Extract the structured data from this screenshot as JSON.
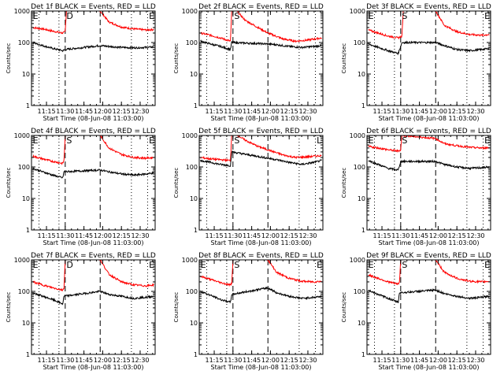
{
  "chart_data": [
    {
      "type": "line",
      "title": "Det 1f BLACK = Events, RED = LLD",
      "xlabel": "Start Time (08-Jun-08 11:03:00)",
      "ylabel": "Counts/sec",
      "yscale": "log",
      "ylim": [
        1,
        1000
      ],
      "xlim": [
        "11:03",
        "12:42"
      ],
      "xticks": [
        "11:15",
        "11:30",
        "11:45",
        "12:00",
        "12:15",
        "12:30"
      ],
      "yticks": [
        "1",
        "10",
        "100",
        "1000"
      ],
      "dotted_lines": [
        "11:09",
        "11:25",
        "12:23",
        "12:36"
      ],
      "dashed_lines": [
        "11:30",
        "11:58"
      ],
      "markers": [
        {
          "label": "E",
          "at": "11:04"
        },
        {
          "label": "D",
          "at": "11:31"
        },
        {
          "label": "E",
          "at": "12:37"
        }
      ],
      "series": [
        {
          "name": "LLD",
          "color": "#ff0000",
          "x": [
            "11:04",
            "11:12",
            "11:20",
            "11:28",
            "11:30",
            "11:31",
            "11:58",
            "12:05",
            "12:15",
            "12:25",
            "12:35",
            "12:41"
          ],
          "y": [
            300,
            270,
            230,
            200,
            220,
            1000,
            1000,
            450,
            310,
            270,
            250,
            260
          ]
        },
        {
          "name": "Events",
          "color": "#000000",
          "x": [
            "11:04",
            "11:12",
            "11:20",
            "11:28",
            "11:30",
            "11:58",
            "12:05",
            "12:15",
            "12:25",
            "12:35",
            "12:41"
          ],
          "y": [
            100,
            80,
            65,
            55,
            60,
            80,
            75,
            70,
            68,
            70,
            72
          ]
        }
      ]
    },
    {
      "type": "line",
      "title": "Det 2f BLACK = Events, RED = LLD",
      "xlabel": "Start Time (08-Jun-08 11:03:00)",
      "ylabel": "Counts/sec",
      "yscale": "log",
      "ylim": [
        1,
        1000
      ],
      "xlim": [
        "11:03",
        "12:42"
      ],
      "xticks": [
        "11:15",
        "11:30",
        "11:45",
        "12:00",
        "12:15",
        "12:30"
      ],
      "yticks": [
        "1",
        "10",
        "100",
        "1000"
      ],
      "dotted_lines": [
        "11:09",
        "11:25",
        "12:23",
        "12:36"
      ],
      "dashed_lines": [
        "11:30",
        "11:58"
      ],
      "markers": [
        {
          "label": "S",
          "at": "11:31"
        }
      ],
      "series": [
        {
          "name": "LLD",
          "color": "#ff0000",
          "x": [
            "11:04",
            "11:12",
            "11:20",
            "11:28",
            "11:29",
            "11:33",
            "11:40",
            "11:50",
            "11:58",
            "12:10",
            "12:20",
            "12:30",
            "12:41"
          ],
          "y": [
            200,
            170,
            140,
            110,
            1000,
            1000,
            500,
            300,
            200,
            130,
            110,
            120,
            140
          ]
        },
        {
          "name": "Events",
          "color": "#000000",
          "x": [
            "11:04",
            "11:12",
            "11:20",
            "11:28",
            "11:29",
            "11:58",
            "12:05",
            "12:15",
            "12:25",
            "12:35",
            "12:41"
          ],
          "y": [
            110,
            90,
            75,
            60,
            100,
            90,
            85,
            75,
            70,
            75,
            80
          ]
        }
      ]
    },
    {
      "type": "line",
      "title": "Det 3f BLACK = Events, RED = LLD",
      "xlabel": "Start Time (08-Jun-08 11:03:00)",
      "ylabel": "Counts/sec",
      "yscale": "log",
      "ylim": [
        1,
        1000
      ],
      "xlim": [
        "11:03",
        "12:42"
      ],
      "xticks": [
        "11:15",
        "11:30",
        "11:45",
        "12:00",
        "12:15",
        "12:30"
      ],
      "yticks": [
        "1",
        "10",
        "100",
        "1000"
      ],
      "dotted_lines": [
        "11:09",
        "11:25",
        "12:23",
        "12:36"
      ],
      "dashed_lines": [
        "11:30",
        "11:58"
      ],
      "markers": [
        {
          "label": "E",
          "at": "11:04"
        },
        {
          "label": "S",
          "at": "11:31"
        },
        {
          "label": "E",
          "at": "12:37"
        }
      ],
      "series": [
        {
          "name": "LLD",
          "color": "#ff0000",
          "x": [
            "11:04",
            "11:12",
            "11:20",
            "11:28",
            "11:31",
            "11:32",
            "11:58",
            "12:05",
            "12:15",
            "12:25",
            "12:35",
            "12:41"
          ],
          "y": [
            250,
            200,
            160,
            140,
            160,
            1000,
            1000,
            350,
            220,
            180,
            170,
            180
          ]
        },
        {
          "name": "Events",
          "color": "#000000",
          "x": [
            "11:04",
            "11:12",
            "11:20",
            "11:28",
            "11:31",
            "11:58",
            "12:05",
            "12:15",
            "12:25",
            "12:35",
            "12:41"
          ],
          "y": [
            90,
            70,
            55,
            45,
            100,
            100,
            80,
            60,
            55,
            60,
            65
          ]
        }
      ]
    },
    {
      "type": "line",
      "title": "Det 4f BLACK = Events, RED = LLD",
      "xlabel": "Start Time (08-Jun-08 11:03:00)",
      "ylabel": "Counts/sec",
      "yscale": "log",
      "ylim": [
        1,
        1000
      ],
      "xlim": [
        "11:03",
        "12:42"
      ],
      "xticks": [
        "11:15",
        "11:30",
        "11:45",
        "12:00",
        "12:15",
        "12:30"
      ],
      "yticks": [
        "1",
        "10",
        "100",
        "1000"
      ],
      "dotted_lines": [
        "11:09",
        "11:25",
        "12:23",
        "12:36"
      ],
      "dashed_lines": [
        "11:30",
        "11:58"
      ],
      "markers": [
        {
          "label": "E",
          "at": "11:04"
        },
        {
          "label": "S",
          "at": "11:31"
        },
        {
          "label": "E",
          "at": "12:37"
        }
      ],
      "series": [
        {
          "name": "LLD",
          "color": "#ff0000",
          "x": [
            "11:04",
            "11:12",
            "11:20",
            "11:28",
            "11:29",
            "11:30",
            "11:58",
            "12:05",
            "12:15",
            "12:25",
            "12:35",
            "12:41"
          ],
          "y": [
            220,
            180,
            150,
            130,
            160,
            1000,
            1000,
            400,
            250,
            200,
            190,
            200
          ]
        },
        {
          "name": "Events",
          "color": "#000000",
          "x": [
            "11:04",
            "11:12",
            "11:20",
            "11:28",
            "11:29",
            "11:58",
            "12:05",
            "12:15",
            "12:25",
            "12:35",
            "12:41"
          ],
          "y": [
            90,
            70,
            55,
            45,
            70,
            80,
            70,
            60,
            55,
            60,
            65
          ]
        }
      ]
    },
    {
      "type": "line",
      "title": "Det 5f BLACK = Events, RED = LLD",
      "xlabel": "Start Time (08-Jun-08 11:03:00)",
      "ylabel": "Counts/sec",
      "yscale": "log",
      "ylim": [
        1,
        1000
      ],
      "xlim": [
        "11:03",
        "12:42"
      ],
      "xticks": [
        "11:15",
        "11:30",
        "11:45",
        "12:00",
        "12:15",
        "12:30"
      ],
      "yticks": [
        "1",
        "10",
        "100",
        "1000"
      ],
      "dotted_lines": [
        "11:09",
        "11:25",
        "12:23",
        "12:36"
      ],
      "dashed_lines": [
        "11:30",
        "11:58"
      ],
      "markers": [
        {
          "label": "S",
          "at": "11:31"
        },
        {
          "label": "L",
          "at": "12:37"
        }
      ],
      "series": [
        {
          "name": "LLD",
          "color": "#ff0000",
          "x": [
            "11:04",
            "11:12",
            "11:20",
            "11:28",
            "11:29",
            "11:34",
            "11:40",
            "11:50",
            "11:58",
            "12:10",
            "12:20",
            "12:30",
            "12:41"
          ],
          "y": [
            200,
            180,
            170,
            160,
            1000,
            1000,
            700,
            450,
            350,
            240,
            200,
            210,
            230
          ]
        },
        {
          "name": "Events",
          "color": "#000000",
          "x": [
            "11:04",
            "11:12",
            "11:20",
            "11:28",
            "11:29",
            "11:58",
            "12:05",
            "12:15",
            "12:25",
            "12:35",
            "12:41"
          ],
          "y": [
            160,
            140,
            120,
            110,
            300,
            190,
            170,
            140,
            120,
            140,
            160
          ]
        }
      ]
    },
    {
      "type": "line",
      "title": "Det 6f BLACK = Events, RED = LLD",
      "xlabel": "Start Time (08-Jun-08 11:03:00)",
      "ylabel": "Counts/sec",
      "yscale": "log",
      "ylim": [
        1,
        1000
      ],
      "xlim": [
        "11:03",
        "12:42"
      ],
      "xticks": [
        "11:15",
        "11:30",
        "11:45",
        "12:00",
        "12:15",
        "12:30"
      ],
      "yticks": [
        "1",
        "10",
        "100",
        "1000"
      ],
      "dotted_lines": [
        "11:09",
        "11:25",
        "12:23",
        "12:36"
      ],
      "dashed_lines": [
        "11:30",
        "11:58"
      ],
      "markers": [
        {
          "label": "E",
          "at": "11:04"
        },
        {
          "label": "S",
          "at": "11:31"
        },
        {
          "label": "E",
          "at": "12:37"
        }
      ],
      "series": [
        {
          "name": "LLD",
          "color": "#ff0000",
          "x": [
            "11:04",
            "11:12",
            "11:20",
            "11:28",
            "11:30",
            "11:31",
            "11:58",
            "12:05",
            "12:15",
            "12:25",
            "12:35",
            "12:41"
          ],
          "y": [
            450,
            400,
            350,
            320,
            350,
            1000,
            800,
            550,
            470,
            420,
            400,
            410
          ]
        },
        {
          "name": "Events",
          "color": "#000000",
          "x": [
            "11:04",
            "11:12",
            "11:20",
            "11:28",
            "11:30",
            "11:58",
            "12:05",
            "12:15",
            "12:25",
            "12:35",
            "12:41"
          ],
          "y": [
            160,
            120,
            90,
            80,
            150,
            150,
            120,
            100,
            90,
            95,
            100
          ]
        }
      ]
    },
    {
      "type": "line",
      "title": "Det 7f BLACK = Events, RED = LLD",
      "xlabel": "Start Time (08-Jun-08 11:03:00)",
      "ylabel": "Counts/sec",
      "yscale": "log",
      "ylim": [
        1,
        1000
      ],
      "xlim": [
        "11:03",
        "12:42"
      ],
      "xticks": [
        "11:15",
        "11:30",
        "11:45",
        "12:00",
        "12:15",
        "12:30"
      ],
      "yticks": [
        "1",
        "10",
        "100",
        "1000"
      ],
      "dotted_lines": [
        "11:09",
        "11:25",
        "12:23",
        "12:36"
      ],
      "dashed_lines": [
        "11:30",
        "11:58"
      ],
      "markers": [
        {
          "label": "E",
          "at": "11:04"
        },
        {
          "label": "D",
          "at": "11:31"
        },
        {
          "label": "E",
          "at": "12:37"
        }
      ],
      "series": [
        {
          "name": "LLD",
          "color": "#ff0000",
          "x": [
            "11:04",
            "11:12",
            "11:20",
            "11:28",
            "11:29",
            "11:30",
            "11:58",
            "12:05",
            "12:15",
            "12:25",
            "12:35",
            "12:41"
          ],
          "y": [
            200,
            160,
            130,
            110,
            130,
            1000,
            1000,
            350,
            200,
            160,
            150,
            160
          ]
        },
        {
          "name": "Events",
          "color": "#000000",
          "x": [
            "11:04",
            "11:12",
            "11:20",
            "11:28",
            "11:29",
            "11:58",
            "12:05",
            "12:15",
            "12:25",
            "12:35",
            "12:41"
          ],
          "y": [
            90,
            70,
            55,
            40,
            70,
            100,
            80,
            70,
            60,
            65,
            70
          ]
        }
      ]
    },
    {
      "type": "line",
      "title": "Det 8f BLACK = Events, RED = LLD",
      "xlabel": "Start Time (08-Jun-08 11:03:00)",
      "ylabel": "Counts/sec",
      "yscale": "log",
      "ylim": [
        1,
        1000
      ],
      "xlim": [
        "11:03",
        "12:42"
      ],
      "xticks": [
        "11:15",
        "11:30",
        "11:45",
        "12:00",
        "12:15",
        "12:30"
      ],
      "yticks": [
        "1",
        "10",
        "100",
        "1000"
      ],
      "dotted_lines": [
        "11:09",
        "11:25",
        "12:23",
        "12:36"
      ],
      "dashed_lines": [
        "11:30",
        "11:58"
      ],
      "markers": [
        {
          "label": "E",
          "at": "11:04"
        },
        {
          "label": "S",
          "at": "11:31"
        },
        {
          "label": "E",
          "at": "12:37"
        }
      ],
      "series": [
        {
          "name": "LLD",
          "color": "#ff0000",
          "x": [
            "11:04",
            "11:12",
            "11:20",
            "11:28",
            "11:29",
            "11:30",
            "11:58",
            "12:05",
            "12:15",
            "12:25",
            "12:35",
            "12:41"
          ],
          "y": [
            300,
            240,
            190,
            160,
            180,
            1000,
            1000,
            400,
            260,
            210,
            200,
            210
          ]
        },
        {
          "name": "Events",
          "color": "#000000",
          "x": [
            "11:04",
            "11:12",
            "11:20",
            "11:28",
            "11:29",
            "11:58",
            "12:05",
            "12:15",
            "12:25",
            "12:35",
            "12:41"
          ],
          "y": [
            100,
            75,
            55,
            45,
            80,
            130,
            90,
            70,
            60,
            65,
            70
          ]
        }
      ]
    },
    {
      "type": "line",
      "title": "Det 9f BLACK = Events, RED = LLD",
      "xlabel": "Start Time (08-Jun-08 11:03:00)",
      "ylabel": "Counts/sec",
      "yscale": "log",
      "ylim": [
        1,
        1000
      ],
      "xlim": [
        "11:03",
        "12:42"
      ],
      "xticks": [
        "11:15",
        "11:30",
        "11:45",
        "12:00",
        "12:15",
        "12:30"
      ],
      "yticks": [
        "1",
        "10",
        "100",
        "1000"
      ],
      "dotted_lines": [
        "11:09",
        "11:25",
        "12:23",
        "12:36"
      ],
      "dashed_lines": [
        "11:30",
        "11:58"
      ],
      "markers": [
        {
          "label": "E",
          "at": "11:04"
        },
        {
          "label": "S",
          "at": "11:31"
        },
        {
          "label": "E",
          "at": "12:37"
        }
      ],
      "series": [
        {
          "name": "LLD",
          "color": "#ff0000",
          "x": [
            "11:04",
            "11:12",
            "11:20",
            "11:28",
            "11:29",
            "11:30",
            "11:58",
            "12:05",
            "12:15",
            "12:25",
            "12:35",
            "12:41"
          ],
          "y": [
            330,
            260,
            200,
            170,
            200,
            1000,
            1000,
            400,
            260,
            210,
            200,
            210
          ]
        },
        {
          "name": "Events",
          "color": "#000000",
          "x": [
            "11:04",
            "11:12",
            "11:20",
            "11:28",
            "11:29",
            "11:58",
            "12:05",
            "12:15",
            "12:25",
            "12:35",
            "12:41"
          ],
          "y": [
            110,
            80,
            60,
            45,
            90,
            110,
            85,
            70,
            60,
            65,
            70
          ]
        }
      ]
    }
  ]
}
